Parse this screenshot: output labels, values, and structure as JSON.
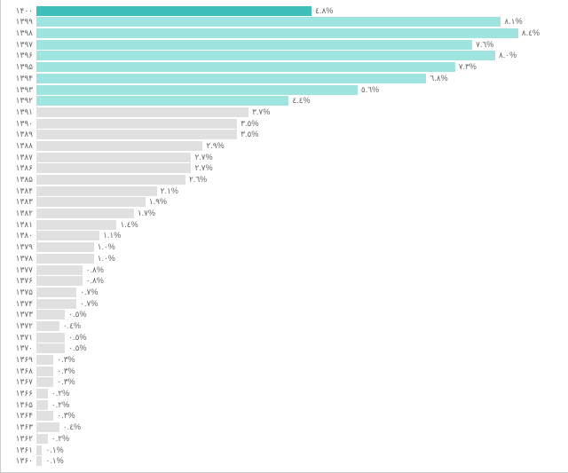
{
  "chart": {
    "type": "bar",
    "orientation": "horizontal",
    "background_color": "#ffffff",
    "label_color": "#666666",
    "label_fontsize": 9,
    "value_suffix": "%",
    "max_value": 8.4,
    "bar_area_width": 590,
    "colors": {
      "highlight": "#3fbfba",
      "teal": "#a0e4e0",
      "gray": "#e0e0e0"
    },
    "rows": [
      {
        "year": "۱۴۰۰",
        "value": 4.8,
        "color": "highlight"
      },
      {
        "year": "۱۳۹۹",
        "value": 8.1,
        "color": "teal"
      },
      {
        "year": "۱۳۹۸",
        "value": 8.4,
        "color": "teal"
      },
      {
        "year": "۱۳۹۷",
        "value": 7.6,
        "color": "teal"
      },
      {
        "year": "۱۳۹۶",
        "value": 8.0,
        "color": "teal"
      },
      {
        "year": "۱۳۹۵",
        "value": 7.3,
        "color": "teal"
      },
      {
        "year": "۱۳۹۴",
        "value": 6.8,
        "color": "teal"
      },
      {
        "year": "۱۳۹۳",
        "value": 5.6,
        "color": "teal"
      },
      {
        "year": "۱۳۹۲",
        "value": 4.4,
        "color": "teal"
      },
      {
        "year": "۱۳۹۱",
        "value": 3.7,
        "color": "gray"
      },
      {
        "year": "۱۳۹۰",
        "value": 3.5,
        "color": "gray"
      },
      {
        "year": "۱۳۸۹",
        "value": 3.5,
        "color": "gray"
      },
      {
        "year": "۱۳۸۸",
        "value": 2.9,
        "color": "gray"
      },
      {
        "year": "۱۳۸۷",
        "value": 2.7,
        "color": "gray"
      },
      {
        "year": "۱۳۸۶",
        "value": 2.7,
        "color": "gray"
      },
      {
        "year": "۱۳۸۵",
        "value": 2.6,
        "color": "gray"
      },
      {
        "year": "۱۳۸۴",
        "value": 2.1,
        "color": "gray"
      },
      {
        "year": "۱۳۸۳",
        "value": 1.9,
        "color": "gray"
      },
      {
        "year": "۱۳۸۲",
        "value": 1.7,
        "color": "gray"
      },
      {
        "year": "۱۳۸۱",
        "value": 1.4,
        "color": "gray"
      },
      {
        "year": "۱۳۸۰",
        "value": 1.1,
        "color": "gray"
      },
      {
        "year": "۱۳۷۹",
        "value": 1.0,
        "color": "gray"
      },
      {
        "year": "۱۳۷۸",
        "value": 1.0,
        "color": "gray"
      },
      {
        "year": "۱۳۷۷",
        "value": 0.8,
        "color": "gray"
      },
      {
        "year": "۱۳۷۶",
        "value": 0.8,
        "color": "gray"
      },
      {
        "year": "۱۳۷۵",
        "value": 0.7,
        "color": "gray"
      },
      {
        "year": "۱۳۷۴",
        "value": 0.7,
        "color": "gray"
      },
      {
        "year": "۱۳۷۳",
        "value": 0.5,
        "color": "gray"
      },
      {
        "year": "۱۳۷۲",
        "value": 0.4,
        "color": "gray"
      },
      {
        "year": "۱۳۷۱",
        "value": 0.5,
        "color": "gray"
      },
      {
        "year": "۱۳۷۰",
        "value": 0.5,
        "color": "gray"
      },
      {
        "year": "۱۳۶۹",
        "value": 0.3,
        "color": "gray"
      },
      {
        "year": "۱۳۶۸",
        "value": 0.3,
        "color": "gray"
      },
      {
        "year": "۱۳۶۷",
        "value": 0.3,
        "color": "gray"
      },
      {
        "year": "۱۳۶۶",
        "value": 0.2,
        "color": "gray"
      },
      {
        "year": "۱۳۶۵",
        "value": 0.2,
        "color": "gray"
      },
      {
        "year": "۱۳۶۴",
        "value": 0.3,
        "color": "gray"
      },
      {
        "year": "۱۳۶۳",
        "value": 0.4,
        "color": "gray"
      },
      {
        "year": "۱۳۶۲",
        "value": 0.2,
        "color": "gray"
      },
      {
        "year": "۱۳۶۱",
        "value": 0.1,
        "color": "gray"
      },
      {
        "year": "۱۳۶۰",
        "value": 0.1,
        "color": "gray"
      }
    ]
  }
}
